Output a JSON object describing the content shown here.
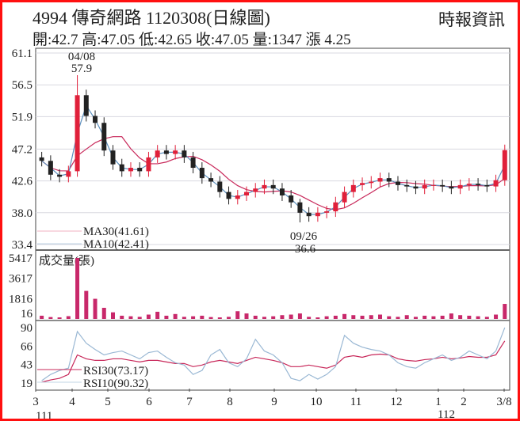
{
  "header": {
    "title": "4994  傳奇網路 1120308(日線圖)",
    "source": "時報資訊",
    "quote": "開:42.7 高:47.05 低:42.65 收:47.05 量:1347 漲 4.25"
  },
  "colors": {
    "up": "#e0203a",
    "down": "#222222",
    "ma30": "#c8285a",
    "ma10": "#5b8fbd",
    "volume": "#c8286a",
    "grid": "#d8d8e0",
    "frame": "#ff1010"
  },
  "chart_data": [
    {
      "type": "candlestick",
      "panel": "price",
      "yticks": [
        "61.1",
        "56.5",
        "51.9",
        "47.2",
        "42.6",
        "38.0",
        "33.4"
      ],
      "ylim": [
        33.4,
        61.1
      ],
      "grid": true,
      "annotations": [
        {
          "date": "04/08",
          "value": "57.9"
        },
        {
          "date": "09/26",
          "value": "36.6"
        }
      ],
      "legend": [
        {
          "name": "MA30",
          "value": "MA30(41.61)"
        },
        {
          "name": "MA10",
          "value": "MA10(42.41)"
        }
      ],
      "dates": [
        "2022-03-07",
        "2022-03-14",
        "2022-03-21",
        "2022-03-28",
        "2022-04-04",
        "2022-04-11",
        "2022-04-18",
        "2022-04-25",
        "2022-05-02",
        "2022-05-09",
        "2022-05-16",
        "2022-05-23",
        "2022-05-30",
        "2022-06-06",
        "2022-06-13",
        "2022-06-20",
        "2022-06-27",
        "2022-07-04",
        "2022-07-11",
        "2022-07-18",
        "2022-07-25",
        "2022-08-01",
        "2022-08-08",
        "2022-08-15",
        "2022-08-22",
        "2022-08-29",
        "2022-09-05",
        "2022-09-12",
        "2022-09-19",
        "2022-09-26",
        "2022-10-03",
        "2022-10-10",
        "2022-10-17",
        "2022-10-24",
        "2022-10-31",
        "2022-11-07",
        "2022-11-14",
        "2022-11-21",
        "2022-11-28",
        "2022-12-05",
        "2022-12-12",
        "2022-12-19",
        "2022-12-26",
        "2023-01-02",
        "2023-01-09",
        "2023-01-16",
        "2023-01-23",
        "2023-01-30",
        "2023-02-06",
        "2023-02-13",
        "2023-02-20",
        "2023-02-27",
        "2023-03-06"
      ],
      "close": [
        45.5,
        43.5,
        43.2,
        44,
        55,
        52,
        51,
        47,
        45,
        44,
        44.5,
        44,
        46,
        47,
        46.5,
        47,
        46,
        44.5,
        43,
        42.5,
        41,
        40,
        40.5,
        41,
        41.5,
        42,
        41.5,
        40.5,
        39.5,
        38,
        37.5,
        38,
        38.2,
        39.5,
        41,
        42,
        42.3,
        42.5,
        43,
        42.5,
        42,
        41.8,
        41.5,
        42,
        42,
        41.8,
        41.5,
        42,
        42.2,
        42,
        41.8,
        42.7,
        47.05
      ]
    },
    {
      "type": "bar",
      "panel": "volume",
      "label": "成交量(張)",
      "yticks": [
        "5417",
        "3617",
        "1816",
        "16"
      ],
      "ylim": [
        16,
        5417
      ],
      "values": [
        300,
        180,
        150,
        260,
        5417,
        2500,
        1800,
        1000,
        600,
        300,
        250,
        200,
        400,
        650,
        300,
        450,
        200,
        250,
        300,
        180,
        150,
        200,
        700,
        500,
        300,
        200,
        250,
        350,
        400,
        500,
        200,
        150,
        250,
        300,
        450,
        350,
        300,
        350,
        400,
        250,
        200,
        350,
        200,
        300,
        250,
        300,
        500,
        350,
        300,
        250,
        200,
        400,
        1347
      ]
    },
    {
      "type": "line",
      "panel": "rsi",
      "yticks": [
        "90",
        "66",
        "43",
        "19"
      ],
      "ylim": [
        19,
        90
      ],
      "legend": [
        {
          "name": "RSI30",
          "value": "RSI30(73.17)"
        },
        {
          "name": "RSI10",
          "value": "RSI10(90.32)"
        }
      ],
      "x_labels": [
        "3",
        "4",
        "5",
        "6",
        "7",
        "8",
        "9",
        "10",
        "11",
        "12",
        "1",
        "2",
        "3/8"
      ],
      "year_labels": [
        "111",
        "112"
      ],
      "series": [
        {
          "name": "RSI10",
          "values": [
            22,
            30,
            35,
            38,
            85,
            70,
            62,
            55,
            58,
            60,
            55,
            50,
            58,
            60,
            52,
            45,
            42,
            30,
            35,
            55,
            62,
            45,
            40,
            50,
            75,
            60,
            55,
            45,
            25,
            22,
            30,
            24,
            30,
            40,
            80,
            70,
            65,
            62,
            60,
            55,
            45,
            40,
            38,
            45,
            50,
            55,
            48,
            52,
            60,
            55,
            50,
            60,
            90
          ]
        },
        {
          "name": "RSI30",
          "values": [
            20,
            23,
            25,
            30,
            55,
            50,
            48,
            48,
            50,
            50,
            48,
            46,
            48,
            48,
            46,
            44,
            44,
            40,
            42,
            46,
            48,
            46,
            44,
            48,
            52,
            50,
            48,
            45,
            40,
            40,
            42,
            40,
            38,
            42,
            52,
            54,
            52,
            55,
            56,
            55,
            50,
            48,
            47,
            49,
            50,
            52,
            50,
            51,
            53,
            52,
            52,
            55,
            73
          ]
        }
      ]
    }
  ]
}
